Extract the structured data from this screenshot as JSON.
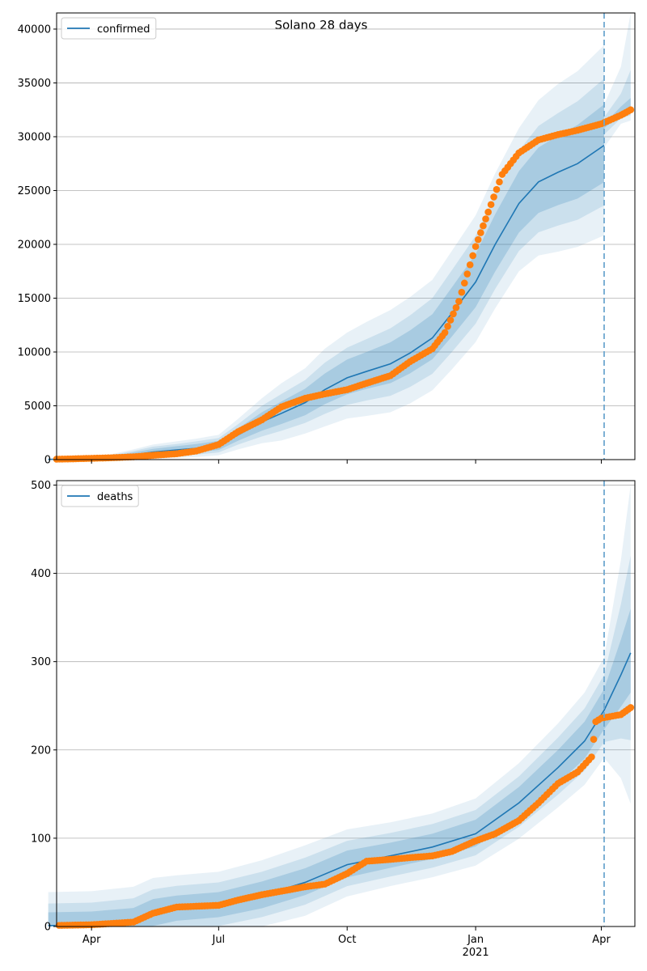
{
  "title": "Solano 28 days",
  "chart_data": [
    {
      "type": "line",
      "legend": {
        "label": "confirmed",
        "position": "upper-left"
      },
      "ylim": [
        0,
        41500
      ],
      "yticks": [
        0,
        5000,
        10000,
        15000,
        20000,
        25000,
        30000,
        35000,
        40000
      ],
      "grid": "horizontal",
      "forecast_start": "2021-04-03",
      "series": [
        {
          "name": "confirmed",
          "kind": "model-median",
          "dates": [
            "2020-03-01",
            "2020-03-15",
            "2020-04-01",
            "2020-04-15",
            "2020-05-01",
            "2020-05-15",
            "2020-06-01",
            "2020-06-15",
            "2020-07-01",
            "2020-07-15",
            "2020-08-01",
            "2020-08-15",
            "2020-09-01",
            "2020-09-15",
            "2020-10-01",
            "2020-10-15",
            "2020-11-01",
            "2020-11-15",
            "2020-12-01",
            "2020-12-15",
            "2021-01-01",
            "2021-01-15",
            "2021-02-01",
            "2021-02-15",
            "2021-03-01",
            "2021-03-15",
            "2021-04-03"
          ],
          "values": [
            20,
            40,
            80,
            200,
            450,
            700,
            900,
            1050,
            1300,
            2300,
            3500,
            4300,
            5300,
            6500,
            7600,
            8200,
            8900,
            9900,
            11300,
            13600,
            16500,
            20000,
            23800,
            25800,
            26700,
            27500,
            29200
          ],
          "band_offsets": [
            [
              [
                0,
                50
              ],
              [
                0,
                80
              ],
              [
                0,
                150
              ],
              [
                0,
                300
              ],
              [
                0,
                500
              ],
              [
                0,
                700
              ],
              [
                0,
                800
              ],
              [
                0,
                900
              ],
              [
                0,
                1000
              ],
              [
                0,
                1500
              ],
              [
                0,
                2200
              ],
              [
                0,
                2800
              ],
              [
                0,
                3200
              ],
              [
                0,
                3800
              ],
              [
                0,
                4200
              ],
              [
                0,
                4600
              ],
              [
                0,
                5000
              ],
              [
                0,
                5200
              ],
              [
                0,
                5400
              ],
              [
                0,
                5800
              ],
              [
                0,
                6200
              ],
              [
                0,
                6600
              ],
              [
                0,
                7000
              ],
              [
                0,
                7600
              ],
              [
                0,
                8200
              ],
              [
                0,
                8600
              ],
              [
                0,
                9300
              ]
            ],
            [
              [
                0,
                30
              ],
              [
                0,
                50
              ],
              [
                0,
                100
              ],
              [
                0,
                200
              ],
              [
                0,
                350
              ],
              [
                0,
                500
              ],
              [
                0,
                550
              ],
              [
                0,
                650
              ],
              [
                0,
                700
              ],
              [
                0,
                1000
              ],
              [
                0,
                1500
              ],
              [
                0,
                1800
              ],
              [
                0,
                2100
              ],
              [
                0,
                2500
              ],
              [
                0,
                2800
              ],
              [
                0,
                3000
              ],
              [
                0,
                3300
              ],
              [
                0,
                3500
              ],
              [
                0,
                3700
              ],
              [
                0,
                4000
              ],
              [
                0,
                4300
              ],
              [
                0,
                4600
              ],
              [
                0,
                4900
              ],
              [
                0,
                5200
              ],
              [
                0,
                5500
              ],
              [
                0,
                5800
              ],
              [
                0,
                6200
              ]
            ],
            [
              [
                0,
                20
              ],
              [
                0,
                30
              ],
              [
                0,
                60
              ],
              [
                0,
                120
              ],
              [
                0,
                220
              ],
              [
                0,
                300
              ],
              [
                0,
                350
              ],
              [
                0,
                400
              ],
              [
                0,
                450
              ],
              [
                0,
                600
              ],
              [
                0,
                900
              ],
              [
                0,
                1100
              ],
              [
                0,
                1300
              ],
              [
                0,
                1500
              ],
              [
                0,
                1700
              ],
              [
                0,
                1800
              ],
              [
                0,
                2000
              ],
              [
                0,
                2100
              ],
              [
                0,
                2200
              ],
              [
                0,
                2400
              ],
              [
                0,
                2600
              ],
              [
                0,
                2800
              ],
              [
                0,
                3000
              ],
              [
                0,
                3200
              ],
              [
                0,
                3400
              ],
              [
                0,
                3600
              ],
              [
                0,
                3800
              ]
            ]
          ]
        },
        {
          "name": "confirmed-forecast",
          "kind": "model-forecast-band",
          "dates": [
            "2021-04-03",
            "2021-04-15",
            "2021-04-22"
          ],
          "lower": [
            [
              29000,
              31200,
              31500
            ],
            [
              30200,
              31700,
              32000
            ],
            [
              30800,
              32000,
              32300
            ]
          ],
          "upper": [
            [
              33000,
              36500,
              41500
            ],
            [
              31800,
              34000,
              36200
            ],
            [
              31200,
              32800,
              33600
            ]
          ]
        },
        {
          "name": "observed confirmed",
          "kind": "observed",
          "dates": [
            "2020-03-01",
            "2020-03-15",
            "2020-04-01",
            "2020-04-15",
            "2020-05-01",
            "2020-05-15",
            "2020-06-01",
            "2020-06-15",
            "2020-07-01",
            "2020-07-15",
            "2020-08-01",
            "2020-08-15",
            "2020-09-01",
            "2020-09-15",
            "2020-10-01",
            "2020-10-15",
            "2020-11-01",
            "2020-11-15",
            "2020-12-01",
            "2020-12-10",
            "2020-12-20",
            "2021-01-01",
            "2021-01-10",
            "2021-01-20",
            "2021-02-01",
            "2021-02-15",
            "2021-03-01",
            "2021-03-15",
            "2021-04-01",
            "2021-04-15",
            "2021-04-22"
          ],
          "values": [
            30,
            60,
            120,
            170,
            260,
            400,
            550,
            800,
            1400,
            2600,
            3700,
            4900,
            5700,
            6100,
            6500,
            7100,
            7800,
            9100,
            10300,
            11800,
            14700,
            19800,
            23000,
            26500,
            28500,
            29700,
            30200,
            30600,
            31200,
            32000,
            32500
          ]
        }
      ]
    },
    {
      "type": "line",
      "legend": {
        "label": "deaths",
        "position": "upper-left"
      },
      "ylim": [
        0,
        505
      ],
      "yticks": [
        0,
        100,
        200,
        300,
        400,
        500
      ],
      "grid": "horizontal",
      "forecast_start": "2021-04-03",
      "xticks": [
        {
          "date": "2020-04-01",
          "label": "Apr"
        },
        {
          "date": "2020-07-01",
          "label": "Jul"
        },
        {
          "date": "2020-10-01",
          "label": "Oct"
        },
        {
          "date": "2021-01-01",
          "label": "Jan",
          "sublabel": "2021"
        },
        {
          "date": "2021-04-01",
          "label": "Apr"
        }
      ],
      "series": [
        {
          "name": "deaths",
          "kind": "model-median",
          "dates": [
            "2020-03-01",
            "2020-04-01",
            "2020-05-01",
            "2020-05-15",
            "2020-06-01",
            "2020-07-01",
            "2020-08-01",
            "2020-09-01",
            "2020-10-01",
            "2020-11-01",
            "2020-12-01",
            "2021-01-01",
            "2021-02-01",
            "2021-03-01",
            "2021-03-20",
            "2021-04-03",
            "2021-04-15",
            "2021-04-22"
          ],
          "values": [
            1,
            2,
            5,
            15,
            20,
            24,
            35,
            50,
            70,
            80,
            90,
            105,
            140,
            180,
            210,
            245,
            285,
            310
          ],
          "band_offsets": [
            [
              [
                0,
                38
              ],
              [
                0,
                38
              ],
              [
                0,
                40
              ],
              [
                0,
                40
              ],
              [
                0,
                38
              ],
              [
                0,
                38
              ],
              [
                0,
                40
              ],
              [
                0,
                42
              ],
              [
                0,
                40
              ],
              [
                0,
                38
              ],
              [
                0,
                38
              ],
              [
                0,
                40
              ],
              [
                0,
                45
              ],
              [
                0,
                50
              ],
              [
                0,
                55
              ],
              [
                0,
                60
              ],
              [
                0,
                130
              ],
              [
                0,
                190
              ]
            ],
            [
              [
                0,
                25
              ],
              [
                0,
                25
              ],
              [
                0,
                27
              ],
              [
                0,
                27
              ],
              [
                0,
                26
              ],
              [
                0,
                26
              ],
              [
                0,
                27
              ],
              [
                0,
                28
              ],
              [
                0,
                27
              ],
              [
                0,
                26
              ],
              [
                0,
                26
              ],
              [
                0,
                27
              ],
              [
                0,
                30
              ],
              [
                0,
                34
              ],
              [
                0,
                37
              ],
              [
                0,
                40
              ],
              [
                0,
                80
              ],
              [
                0,
                110
              ]
            ],
            [
              [
                0,
                15
              ],
              [
                0,
                15
              ],
              [
                0,
                16
              ],
              [
                0,
                16
              ],
              [
                0,
                15
              ],
              [
                0,
                15
              ],
              [
                0,
                16
              ],
              [
                0,
                16
              ],
              [
                0,
                16
              ],
              [
                0,
                15
              ],
              [
                0,
                15
              ],
              [
                0,
                16
              ],
              [
                0,
                18
              ],
              [
                0,
                20
              ],
              [
                0,
                22
              ],
              [
                0,
                24
              ],
              [
                0,
                40
              ],
              [
                0,
                50
              ]
            ]
          ]
        },
        {
          "name": "observed deaths",
          "kind": "observed",
          "dates": [
            "2020-03-01",
            "2020-04-01",
            "2020-05-01",
            "2020-05-15",
            "2020-06-01",
            "2020-07-01",
            "2020-07-15",
            "2020-08-01",
            "2020-08-15",
            "2020-09-01",
            "2020-09-15",
            "2020-10-01",
            "2020-10-15",
            "2020-11-01",
            "2020-11-15",
            "2020-12-01",
            "2020-12-15",
            "2021-01-01",
            "2021-01-15",
            "2021-02-01",
            "2021-02-15",
            "2021-03-01",
            "2021-03-15",
            "2021-03-25",
            "2021-03-28",
            "2021-04-01",
            "2021-04-15",
            "2021-04-22"
          ],
          "values": [
            1,
            2,
            5,
            15,
            22,
            24,
            30,
            36,
            40,
            45,
            48,
            60,
            74,
            76,
            78,
            80,
            85,
            97,
            105,
            120,
            140,
            162,
            175,
            192,
            232,
            236,
            240,
            248
          ]
        }
      ]
    }
  ]
}
